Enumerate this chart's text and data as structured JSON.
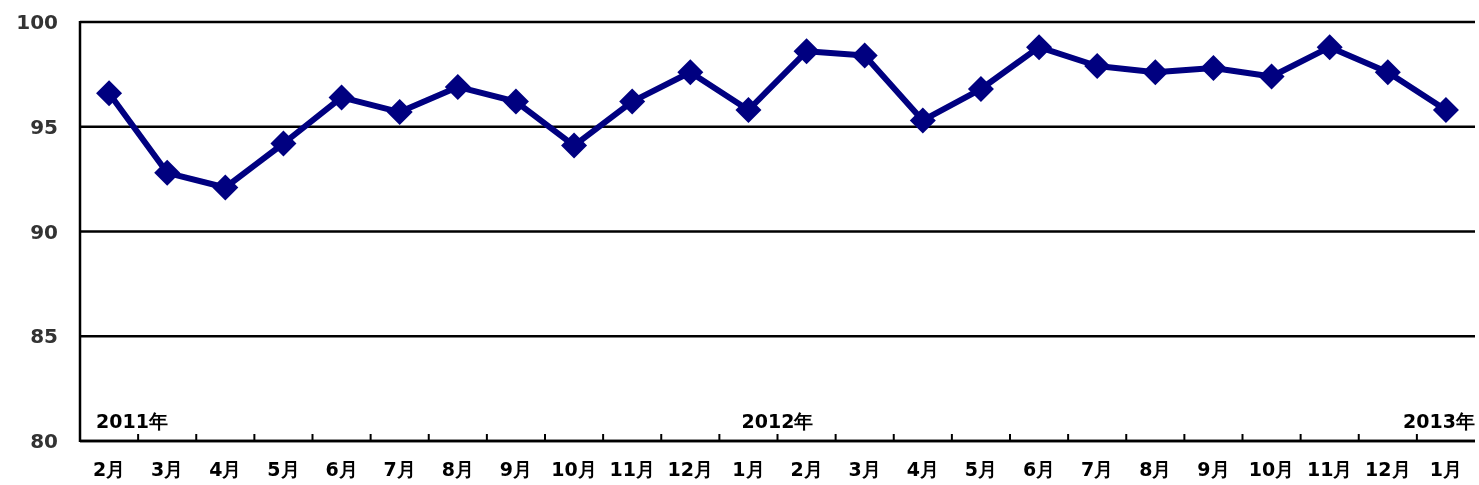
{
  "chart_data": {
    "type": "line",
    "categories": [
      "2月",
      "3月",
      "4月",
      "5月",
      "6月",
      "7月",
      "8月",
      "9月",
      "10月",
      "11月",
      "12月",
      "1月",
      "2月",
      "3月",
      "4月",
      "5月",
      "6月",
      "7月",
      "8月",
      "9月",
      "10月",
      "11月",
      "12月",
      "1月"
    ],
    "series": [
      {
        "color": "#000080",
        "values": [
          96.6,
          92.8,
          92.1,
          94.2,
          96.4,
          95.7,
          96.9,
          96.2,
          94.1,
          96.2,
          97.6,
          95.8,
          98.6,
          98.4,
          95.3,
          96.8,
          98.8,
          97.9,
          97.6,
          97.8,
          97.4,
          98.8,
          97.6,
          95.8
        ]
      }
    ],
    "ylim": [
      80,
      100
    ],
    "yticks": [
      80,
      85,
      90,
      95,
      100
    ],
    "grid": "y",
    "marker": "diamond",
    "line_style": "solid",
    "annotations": [
      "2011年",
      "2012年",
      "2013年"
    ]
  }
}
